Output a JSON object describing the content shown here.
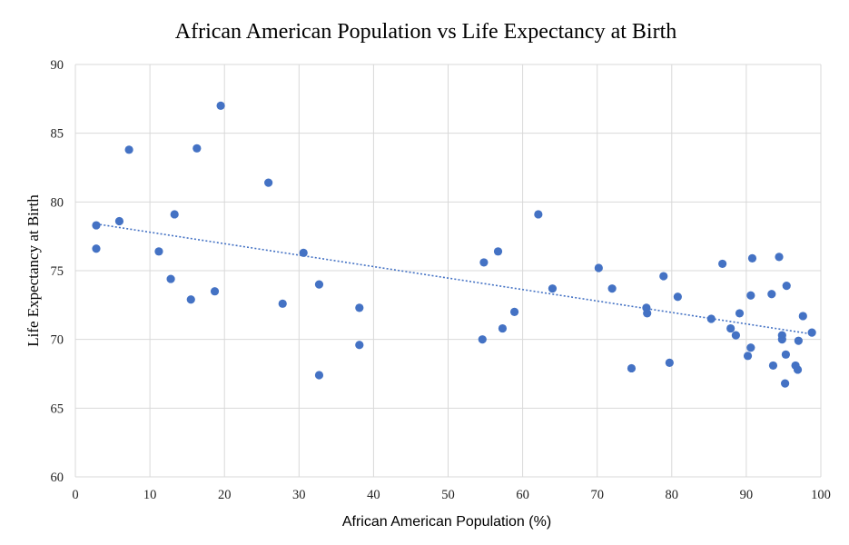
{
  "chart_data": {
    "type": "scatter",
    "title": "African American Population vs Life Expectancy at Birth",
    "xlabel": "African American Population (%)",
    "ylabel": "Life Expectancy at Birth",
    "xlim": [
      0,
      100
    ],
    "ylim": [
      60,
      90
    ],
    "xticks": [
      0,
      10,
      20,
      30,
      40,
      50,
      60,
      70,
      80,
      90,
      100
    ],
    "yticks": [
      60,
      65,
      70,
      75,
      80,
      85,
      90
    ],
    "grid": true,
    "legend": "none",
    "point_color": "#4472C4",
    "trendline": {
      "type": "linear",
      "x": [
        2.8,
        98.7
      ],
      "y": [
        78.4,
        70.4
      ],
      "style": "dotted",
      "color": "#4472C4"
    },
    "series": [
      {
        "points": [
          {
            "x": 2.8,
            "y": 78.3
          },
          {
            "x": 2.8,
            "y": 76.6
          },
          {
            "x": 5.9,
            "y": 78.6
          },
          {
            "x": 7.2,
            "y": 83.8
          },
          {
            "x": 11.2,
            "y": 76.4
          },
          {
            "x": 12.8,
            "y": 74.4
          },
          {
            "x": 13.3,
            "y": 79.1
          },
          {
            "x": 15.5,
            "y": 72.9
          },
          {
            "x": 16.3,
            "y": 83.9
          },
          {
            "x": 18.7,
            "y": 73.5
          },
          {
            "x": 19.5,
            "y": 87.0
          },
          {
            "x": 25.9,
            "y": 81.4
          },
          {
            "x": 27.8,
            "y": 72.6
          },
          {
            "x": 30.6,
            "y": 76.3
          },
          {
            "x": 32.7,
            "y": 74.0
          },
          {
            "x": 32.7,
            "y": 67.4
          },
          {
            "x": 38.1,
            "y": 72.3
          },
          {
            "x": 38.1,
            "y": 69.6
          },
          {
            "x": 54.6,
            "y": 70.0
          },
          {
            "x": 54.8,
            "y": 75.6
          },
          {
            "x": 56.7,
            "y": 76.4
          },
          {
            "x": 57.3,
            "y": 70.8
          },
          {
            "x": 58.9,
            "y": 72.0
          },
          {
            "x": 62.1,
            "y": 79.1
          },
          {
            "x": 64.0,
            "y": 73.7
          },
          {
            "x": 70.2,
            "y": 75.2
          },
          {
            "x": 72.0,
            "y": 73.7
          },
          {
            "x": 74.6,
            "y": 67.9
          },
          {
            "x": 76.6,
            "y": 72.3
          },
          {
            "x": 76.7,
            "y": 71.9
          },
          {
            "x": 78.9,
            "y": 74.6
          },
          {
            "x": 79.7,
            "y": 68.3
          },
          {
            "x": 80.8,
            "y": 73.1
          },
          {
            "x": 85.3,
            "y": 71.5
          },
          {
            "x": 86.8,
            "y": 75.5
          },
          {
            "x": 87.9,
            "y": 70.8
          },
          {
            "x": 88.6,
            "y": 70.3
          },
          {
            "x": 89.1,
            "y": 71.9
          },
          {
            "x": 90.2,
            "y": 68.8
          },
          {
            "x": 90.6,
            "y": 69.4
          },
          {
            "x": 90.6,
            "y": 73.2
          },
          {
            "x": 90.8,
            "y": 75.9
          },
          {
            "x": 93.4,
            "y": 73.3
          },
          {
            "x": 93.6,
            "y": 68.1
          },
          {
            "x": 94.4,
            "y": 76.0
          },
          {
            "x": 94.8,
            "y": 70.3
          },
          {
            "x": 94.8,
            "y": 70.0
          },
          {
            "x": 95.2,
            "y": 66.8
          },
          {
            "x": 95.4,
            "y": 73.9
          },
          {
            "x": 95.3,
            "y": 68.9
          },
          {
            "x": 96.6,
            "y": 68.1
          },
          {
            "x": 96.9,
            "y": 67.8
          },
          {
            "x": 97.0,
            "y": 69.9
          },
          {
            "x": 97.6,
            "y": 71.7
          },
          {
            "x": 98.8,
            "y": 70.5
          }
        ]
      }
    ]
  }
}
